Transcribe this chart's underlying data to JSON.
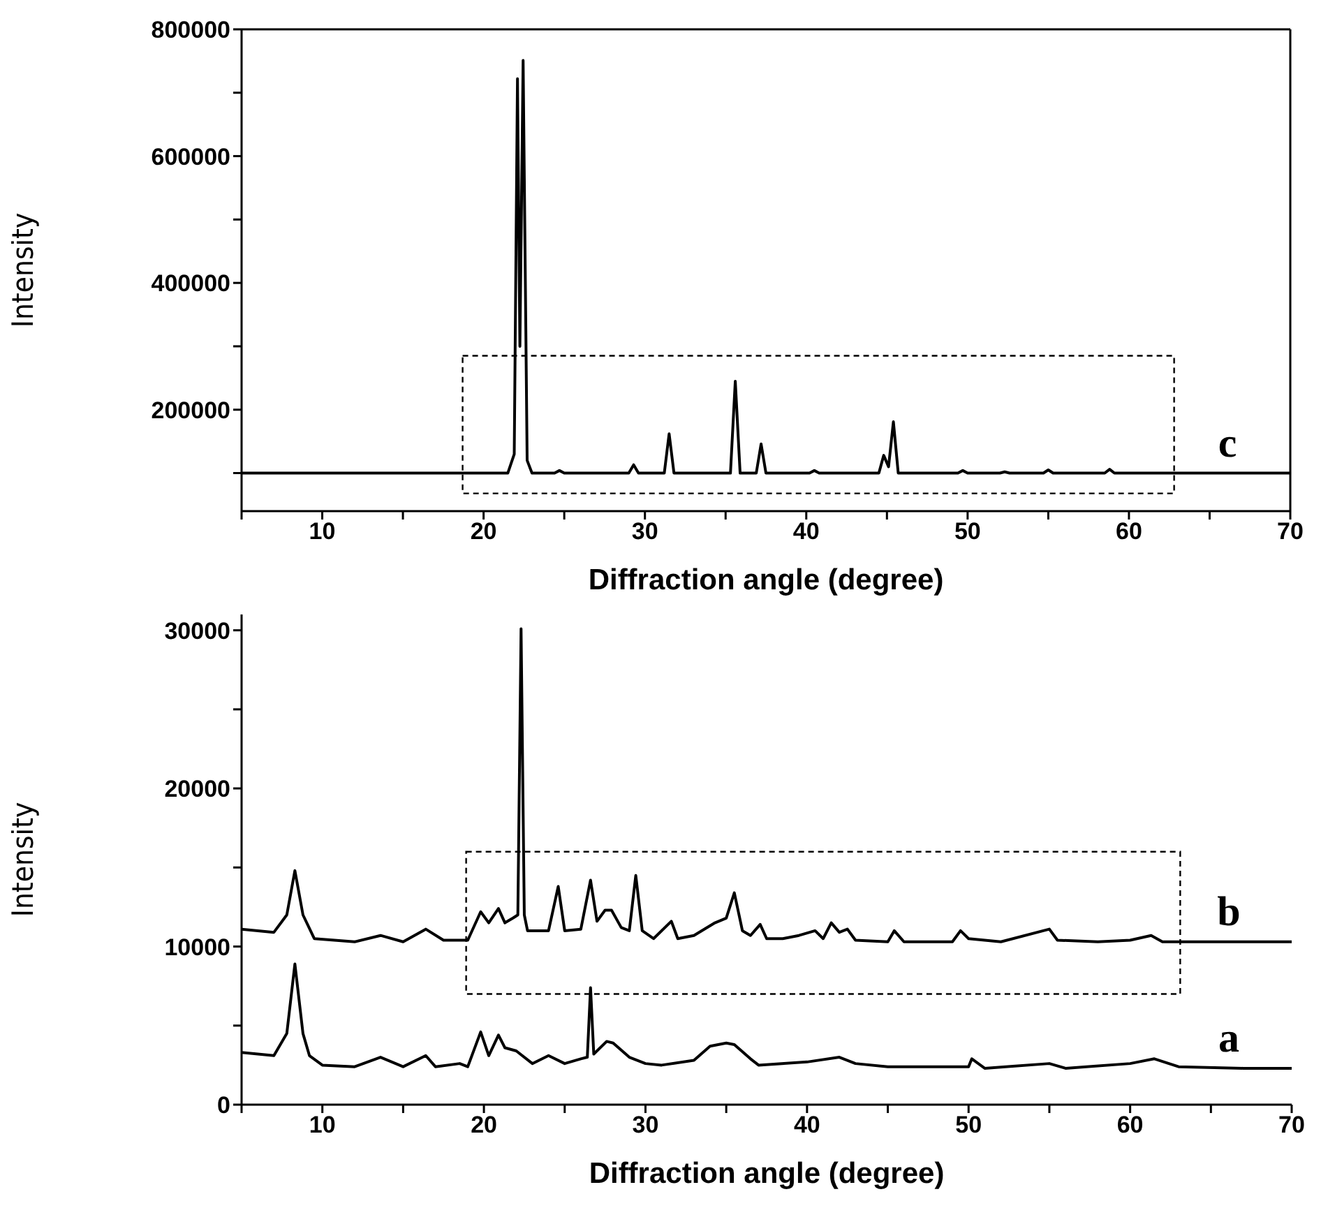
{
  "chart_data": [
    {
      "type": "line",
      "xlabel": "Diffraction angle (degree)",
      "ylabel": "Intensity",
      "xlim": [
        5,
        70
      ],
      "ylim": [
        40000,
        800000
      ],
      "xticks": [
        {
          "value": 5,
          "label": null
        },
        10,
        {
          "value": 15,
          "label": null
        },
        20,
        {
          "value": 25,
          "label": null
        },
        30,
        {
          "value": 35,
          "label": null
        },
        40,
        {
          "value": 45,
          "label": null
        },
        50,
        {
          "value": 55,
          "label": null
        },
        60,
        {
          "value": 65,
          "label": null
        },
        70
      ],
      "yticks": [
        {
          "value": 100000,
          "label": null
        },
        200000,
        {
          "value": 300000,
          "label": null
        },
        400000,
        {
          "value": 500000,
          "label": null
        },
        600000,
        {
          "value": 700000,
          "label": null
        },
        800000
      ],
      "series": [
        {
          "name": "c",
          "color": "#000000",
          "x": [
            5,
            21.5,
            21.9,
            22.1,
            22.25,
            22.45,
            22.7,
            23,
            24.4,
            24.7,
            25,
            29,
            29.3,
            29.6,
            31.2,
            31.5,
            31.8,
            35.3,
            35.6,
            35.9,
            36.9,
            37.2,
            37.5,
            40.2,
            40.5,
            40.8,
            44.5,
            44.8,
            45.1,
            45.4,
            45.7,
            49.4,
            49.7,
            50,
            52,
            52.3,
            52.6,
            54.7,
            55,
            55.3,
            58.5,
            58.8,
            59.1,
            70
          ],
          "values": [
            100000,
            100000,
            130000,
            722000,
            300000,
            751000,
            120000,
            100000,
            100000,
            104000,
            100000,
            100000,
            113000,
            100000,
            100000,
            162000,
            100000,
            100000,
            245000,
            100000,
            100000,
            146000,
            100000,
            100000,
            104000,
            100000,
            100000,
            128000,
            110000,
            181000,
            100000,
            100000,
            104000,
            100000,
            100000,
            102000,
            100000,
            100000,
            105000,
            100000,
            100000,
            106000,
            100000,
            100000
          ]
        }
      ]
    },
    {
      "type": "line",
      "xlabel": "Diffraction angle (degree)",
      "ylabel": "Intensity",
      "xlim": [
        5,
        70
      ],
      "ylim": [
        0,
        31000
      ],
      "xticks": [
        {
          "value": 5,
          "label": null
        },
        10,
        {
          "value": 15,
          "label": null
        },
        20,
        {
          "value": 25,
          "label": null
        },
        30,
        {
          "value": 35,
          "label": null
        },
        40,
        {
          "value": 45,
          "label": null
        },
        50,
        {
          "value": 55,
          "label": null
        },
        60,
        {
          "value": 65,
          "label": null
        },
        70
      ],
      "yticks": [
        0,
        {
          "value": 5000,
          "label": null
        },
        10000,
        {
          "value": 15000,
          "label": null
        },
        20000,
        {
          "value": 25000,
          "label": null
        },
        30000
      ],
      "series": [
        {
          "name": "b",
          "color": "#000000",
          "x": [
            5,
            7,
            7.8,
            8.3,
            8.8,
            9.5,
            12,
            13.6,
            15,
            16.4,
            17.5,
            19,
            19.8,
            20.3,
            20.9,
            21.3,
            21.8,
            22.1,
            22.3,
            22.5,
            22.7,
            24,
            24.6,
            25,
            26,
            26.6,
            27,
            27.5,
            27.9,
            28.5,
            29,
            29.4,
            29.8,
            30.5,
            31.6,
            32,
            33,
            34.3,
            35,
            35.5,
            36,
            36.5,
            37.1,
            37.5,
            38.5,
            39.5,
            40.5,
            41,
            41.5,
            42,
            42.5,
            43,
            45,
            45.4,
            46,
            49,
            49.5,
            50,
            52,
            55,
            55.5,
            58,
            60,
            61.3,
            62,
            65,
            70
          ],
          "values": [
            11100,
            10900,
            12000,
            14800,
            12000,
            10500,
            10300,
            10700,
            10300,
            11100,
            10400,
            10400,
            12200,
            11500,
            12400,
            11500,
            11800,
            12000,
            30100,
            12000,
            11000,
            11000,
            13800,
            11000,
            11100,
            14200,
            11600,
            12300,
            12300,
            11200,
            11000,
            14500,
            11000,
            10500,
            11600,
            10500,
            10700,
            11500,
            11800,
            13400,
            11000,
            10700,
            11400,
            10500,
            10500,
            10700,
            11000,
            10500,
            11500,
            10900,
            11100,
            10400,
            10300,
            11000,
            10300,
            10300,
            11000,
            10500,
            10300,
            11100,
            10400,
            10300,
            10400,
            10700,
            10300,
            10300,
            10300
          ]
        },
        {
          "name": "a",
          "color": "#000000",
          "x": [
            5,
            7,
            7.8,
            8.3,
            8.8,
            9.2,
            10,
            12,
            13.6,
            15,
            16.4,
            17,
            18.5,
            19,
            19.8,
            20.3,
            20.9,
            21.3,
            22,
            23,
            24,
            25,
            26,
            26.4,
            26.6,
            26.8,
            27.6,
            28,
            29,
            30,
            31,
            33,
            34,
            35,
            35.5,
            36.5,
            37,
            40,
            42,
            43,
            45,
            50,
            50.2,
            51,
            55,
            56,
            60,
            61.5,
            63,
            67,
            70
          ],
          "values": [
            3300,
            3100,
            4500,
            8900,
            4500,
            3100,
            2500,
            2400,
            3000,
            2400,
            3100,
            2400,
            2600,
            2400,
            4600,
            3100,
            4400,
            3600,
            3400,
            2600,
            3100,
            2600,
            2900,
            3000,
            7400,
            3200,
            4000,
            3900,
            3000,
            2600,
            2500,
            2800,
            3700,
            3900,
            3800,
            2900,
            2500,
            2700,
            3000,
            2600,
            2400,
            2400,
            2900,
            2300,
            2600,
            2300,
            2600,
            2900,
            2400,
            2300,
            2300
          ]
        }
      ]
    }
  ]
}
